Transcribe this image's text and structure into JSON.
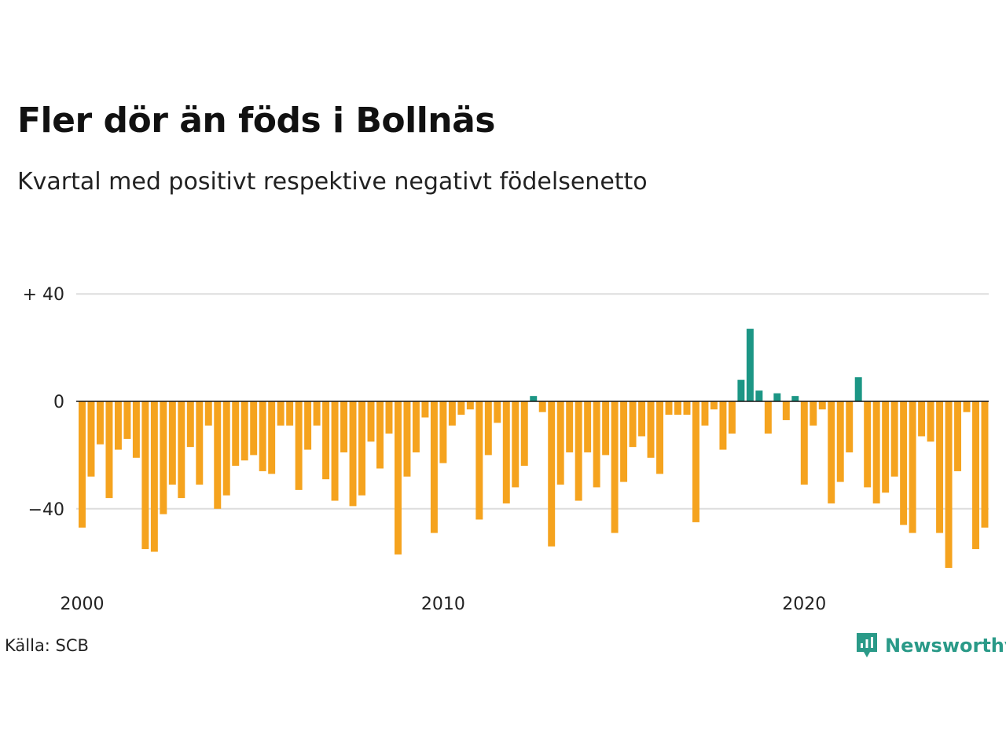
{
  "header": {
    "title": "Fler dör än föds i Bollnäs",
    "subtitle": "Kvartal med positivt respektive negativt födelsenetto"
  },
  "footer": {
    "source": "Källa: SCB",
    "brand": "Newsworthy",
    "brand_icon": "chart-bubble-icon"
  },
  "colors": {
    "negative": "#f5a31e",
    "positive": "#1c9685",
    "grid": "#dddddd",
    "baseline": "#111111"
  },
  "chart_data": {
    "type": "bar",
    "title": "Fler dör än föds i Bollnäs",
    "subtitle": "Kvartal med positivt respektive negativt födelsenetto",
    "x_tick_labels": [
      "2000",
      "2010",
      "2020"
    ],
    "y_tick_labels": [
      {
        "value": 40,
        "label": "+ 40"
      },
      {
        "value": 0,
        "label": "0"
      },
      {
        "value": -40,
        "label": "−40"
      }
    ],
    "ylim": [
      -62,
      40
    ],
    "grid": true,
    "start_year": 2000,
    "quarters_per_year": 4,
    "values": [
      -47,
      -28,
      -16,
      -36,
      -18,
      -14,
      -21,
      -55,
      -56,
      -42,
      -31,
      -36,
      -17,
      -31,
      -9,
      -40,
      -35,
      -24,
      -22,
      -20,
      -26,
      -27,
      -9,
      -9,
      -33,
      -18,
      -9,
      -29,
      -37,
      -19,
      -39,
      -35,
      -15,
      -25,
      -12,
      -57,
      -28,
      -19,
      -6,
      -49,
      -23,
      -9,
      -5,
      -3,
      -44,
      -20,
      -8,
      -38,
      -32,
      -24,
      2,
      -4,
      -54,
      -31,
      -19,
      -37,
      -19,
      -32,
      -20,
      -49,
      -30,
      -17,
      -13,
      -21,
      -27,
      -5,
      -5,
      -5,
      -45,
      -9,
      -3,
      -18,
      -12,
      8,
      27,
      4,
      -12,
      3,
      -7,
      2,
      -31,
      -9,
      -3,
      -38,
      -30,
      -19,
      9,
      -32,
      -38,
      -34,
      -28,
      -46,
      -49,
      -13,
      -15,
      -49,
      -62,
      -26,
      -4,
      -55,
      -47
    ]
  }
}
